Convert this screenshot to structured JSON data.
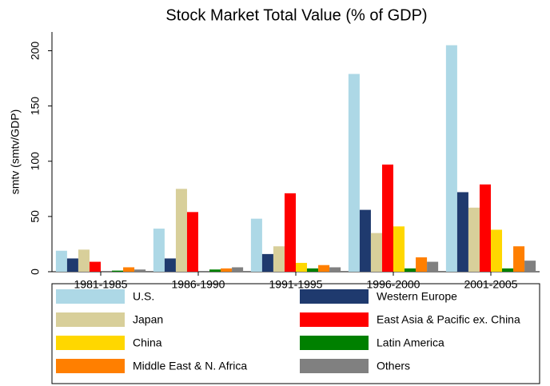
{
  "chart_data": {
    "type": "bar",
    "title": "Stock Market Total Value (% of GDP)",
    "y_label": "smtv (smtv/GDP)",
    "categories": [
      "1981-1985",
      "1986-1990",
      "1991-1995",
      "1996-2000",
      "2001-2005"
    ],
    "series": [
      {
        "name": "U.S.",
        "color": "#add8e6",
        "values": [
          19,
          39,
          48,
          179,
          205
        ]
      },
      {
        "name": "Western Europe",
        "color": "#1f3a6e",
        "values": [
          12,
          12,
          16,
          56,
          72
        ]
      },
      {
        "name": "Japan",
        "color": "#d8cf9a",
        "values": [
          20,
          75,
          23,
          35,
          58
        ]
      },
      {
        "name": "East Asia & Pacific ex. China",
        "color": "#ff0000",
        "values": [
          9,
          54,
          71,
          97,
          79
        ]
      },
      {
        "name": "China",
        "color": "#ffd700",
        "values": [
          0,
          0,
          8,
          41,
          38
        ]
      },
      {
        "name": "Latin America",
        "color": "#008000",
        "values": [
          1,
          2,
          3,
          3,
          3
        ]
      },
      {
        "name": "Middle East & N. Africa",
        "color": "#ff7f00",
        "values": [
          4,
          3,
          6,
          13,
          23
        ]
      },
      {
        "name": "Others",
        "color": "#808080",
        "values": [
          2,
          4,
          4,
          9,
          10
        ]
      }
    ],
    "ylim": [
      0,
      217
    ],
    "yticks": [
      0,
      50,
      100,
      150,
      200
    ],
    "legend": "bottom"
  }
}
